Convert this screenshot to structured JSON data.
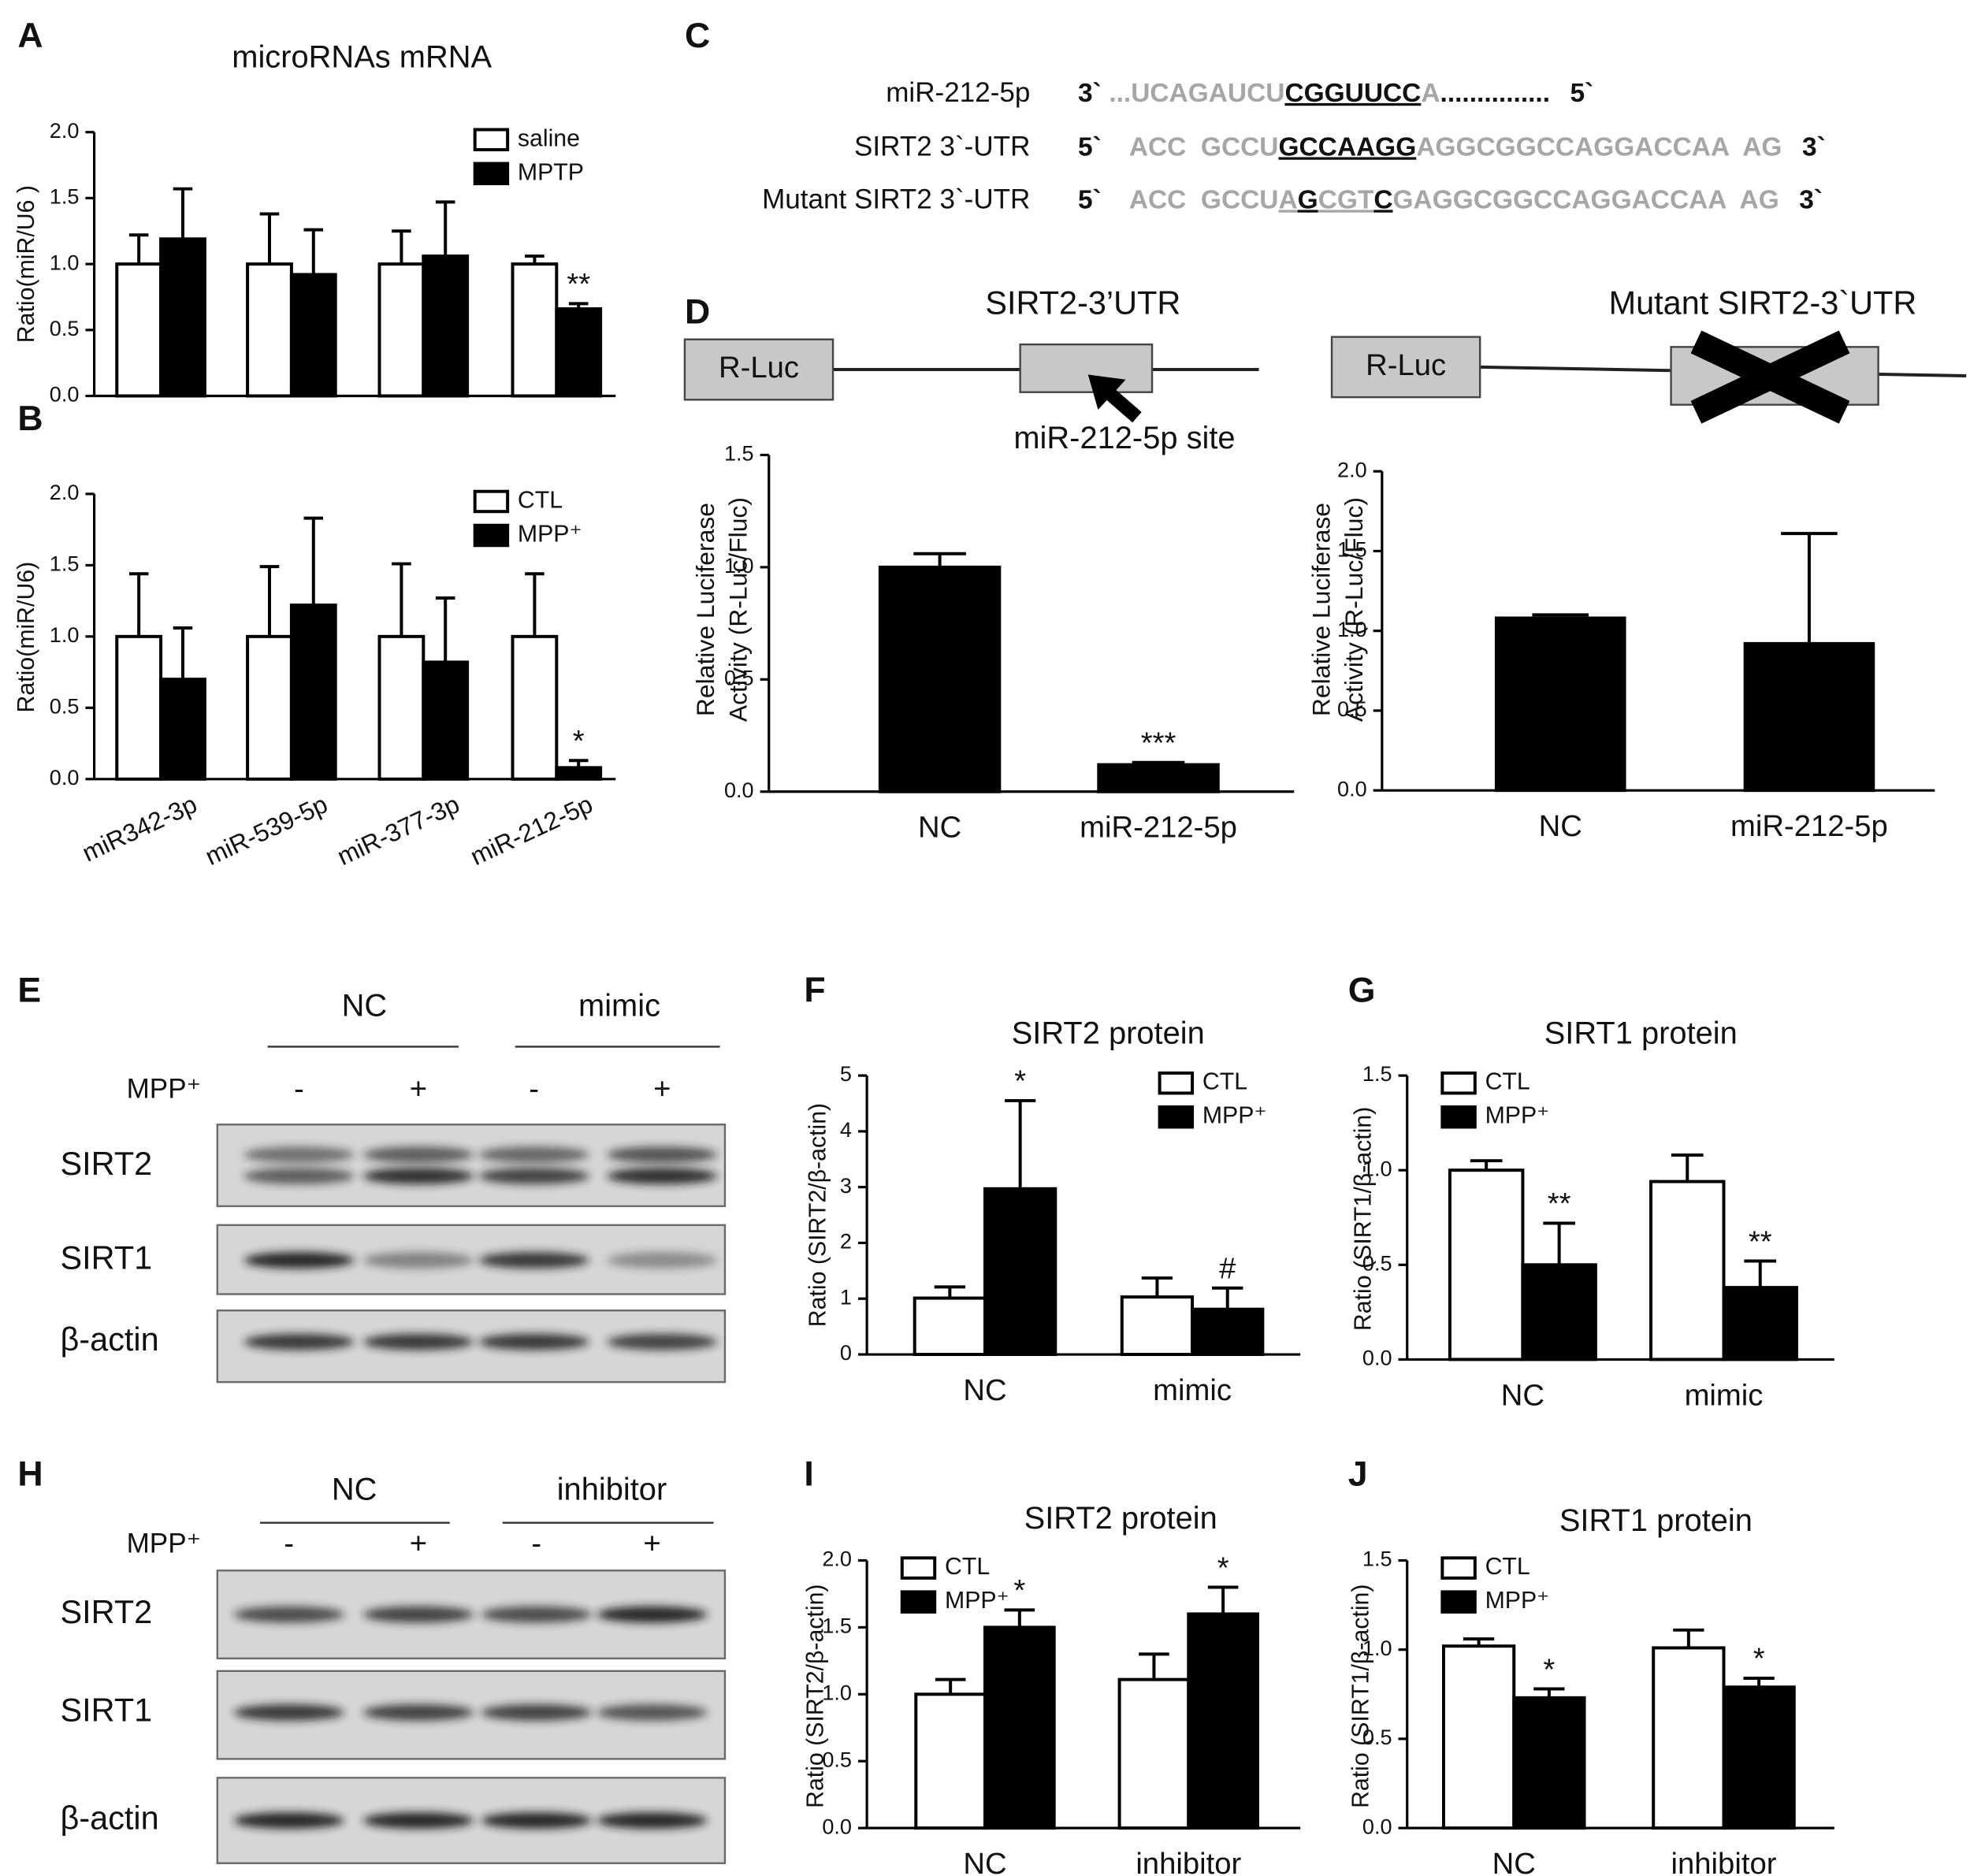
{
  "panel_labels": [
    "A",
    "B",
    "C",
    "D",
    "E",
    "F",
    "G",
    "H",
    "I",
    "J"
  ],
  "chart_data": [
    {
      "type": "bar",
      "title": "microRNAs mRNA",
      "y_label": "Ratio(miR/U6 )",
      "categories": [
        null,
        null,
        null,
        null
      ],
      "ylim": [
        0,
        2
      ],
      "yticks": [
        {
          "value": 0,
          "label": "0.0"
        },
        {
          "value": 0.5,
          "label": "0.5"
        },
        {
          "value": 1,
          "label": "1.0"
        },
        {
          "value": 1.5,
          "label": "1.5"
        },
        {
          "value": 2,
          "label": "2.0"
        }
      ],
      "legend": "upper right",
      "series": [
        {
          "name": "saline",
          "color": "#ffffff",
          "values": [
            1.0,
            1.0,
            1.0,
            1.0
          ],
          "errors": [
            0.22,
            0.38,
            0.25,
            0.06
          ]
        },
        {
          "name": "MPTP",
          "color": "#000000",
          "values": [
            1.19,
            0.92,
            1.06,
            0.66
          ],
          "errors": [
            0.38,
            0.34,
            0.41,
            0.04
          ],
          "significance": [
            null,
            null,
            null,
            "**"
          ]
        }
      ]
    },
    {
      "type": "bar",
      "y_label": "Ratio(miR/U6)",
      "categories": [
        "miR342-3p",
        "miR-539-5p",
        "miR-377-3p",
        "miR-212-5p"
      ],
      "ylim": [
        0,
        2
      ],
      "yticks": [
        {
          "value": 0,
          "label": "0.0"
        },
        {
          "value": 0.5,
          "label": "0.5"
        },
        {
          "value": 1,
          "label": "1.0"
        },
        {
          "value": 1.5,
          "label": "1.5"
        },
        {
          "value": 2,
          "label": "2.0"
        }
      ],
      "legend": "upper right",
      "series": [
        {
          "name": "CTL",
          "color": "#ffffff",
          "values": [
            1.0,
            1.0,
            1.0,
            1.0
          ],
          "errors": [
            0.44,
            0.49,
            0.51,
            0.44
          ]
        },
        {
          "name": "MPP⁺",
          "color": "#000000",
          "values": [
            0.7,
            1.22,
            0.82,
            0.08
          ],
          "errors": [
            0.36,
            0.61,
            0.45,
            0.05
          ],
          "significance": [
            null,
            null,
            null,
            "*"
          ]
        }
      ]
    },
    {
      "type": "bar",
      "y_label": [
        "Relative Luciferase",
        "Activity (R-Luc/Fluc)"
      ],
      "categories": [
        "NC",
        "miR-212-5p"
      ],
      "ylim": [
        0,
        1.5
      ],
      "yticks": [
        {
          "value": 0,
          "label": "0.0"
        },
        {
          "value": 0.5,
          "label": "0.5"
        },
        {
          "value": 1,
          "label": "1.0"
        },
        {
          "value": 1.5,
          "label": "1.5"
        }
      ],
      "color": "#000000",
      "values": [
        1.0,
        0.12
      ],
      "errors": [
        0.06,
        0.01
      ],
      "significance": [
        null,
        "***"
      ]
    },
    {
      "type": "bar",
      "y_label": [
        "Relative Luciferase",
        "Activity (R-Luc/Fluc)"
      ],
      "categories": [
        "NC",
        "miR-212-5p"
      ],
      "ylim": [
        0,
        2
      ],
      "yticks": [
        {
          "value": 0,
          "label": "0.0"
        },
        {
          "value": 0.5,
          "label": "0.5"
        },
        {
          "value": 1,
          "label": "1.0"
        },
        {
          "value": 1.5,
          "label": "1.5"
        },
        {
          "value": 2,
          "label": "2.0"
        }
      ],
      "color": "#000000",
      "values": [
        1.08,
        0.92
      ],
      "errors": [
        0.02,
        0.69
      ]
    },
    {
      "type": "bar",
      "title": "SIRT2  protein",
      "y_label": "Ratio (SIRT2/β-actin)",
      "categories": [
        "NC",
        "mimic"
      ],
      "ylim": [
        0,
        5
      ],
      "yticks": [
        0,
        1,
        2,
        3,
        4,
        5
      ],
      "legend": "upper right",
      "series": [
        {
          "name": "CTL",
          "color": "#ffffff",
          "values": [
            1.01,
            1.03
          ],
          "errors": [
            0.2,
            0.34
          ]
        },
        {
          "name": "MPP⁺",
          "color": "#000000",
          "values": [
            2.97,
            0.81
          ],
          "errors": [
            1.58,
            0.38
          ],
          "significance": [
            "*",
            "#"
          ]
        }
      ]
    },
    {
      "type": "bar",
      "title": "SIRT1 protein",
      "y_label": "Ratio (SIRT1/β-actin)",
      "categories": [
        "NC",
        "mimic"
      ],
      "ylim": [
        0,
        1.5
      ],
      "yticks": [
        {
          "value": 0,
          "label": "0.0"
        },
        {
          "value": 0.5,
          "label": "0.5"
        },
        {
          "value": 1,
          "label": "1.0"
        },
        {
          "value": 1.5,
          "label": "1.5"
        }
      ],
      "legend": "upper left",
      "series": [
        {
          "name": "CTL",
          "color": "#ffffff",
          "values": [
            1.0,
            0.94
          ],
          "errors": [
            0.05,
            0.14
          ]
        },
        {
          "name": "MPP⁺",
          "color": "#000000",
          "values": [
            0.5,
            0.38
          ],
          "errors": [
            0.22,
            0.14
          ],
          "significance": [
            "**",
            "**"
          ]
        }
      ]
    },
    {
      "type": "bar",
      "title": "SIRT2  protein",
      "y_label": "Ratio (SIRT2/β-actin)",
      "categories": [
        "NC",
        "inhibitor"
      ],
      "ylim": [
        0,
        2
      ],
      "yticks": [
        {
          "value": 0,
          "label": "0.0"
        },
        {
          "value": 0.5,
          "label": "0.5"
        },
        {
          "value": 1,
          "label": "1.0"
        },
        {
          "value": 1.5,
          "label": "1.5"
        },
        {
          "value": 2,
          "label": "2.0"
        }
      ],
      "legend": "upper left",
      "series": [
        {
          "name": "CTL",
          "color": "#ffffff",
          "values": [
            1.0,
            1.11
          ],
          "errors": [
            0.11,
            0.19
          ]
        },
        {
          "name": "MPP⁺",
          "color": "#000000",
          "values": [
            1.5,
            1.6
          ],
          "errors": [
            0.13,
            0.2
          ],
          "significance": [
            "*",
            "*"
          ]
        }
      ]
    },
    {
      "type": "bar",
      "title": "SIRT1 protein",
      "y_label": "Ratio (SIRT1/β-actin)",
      "categories": [
        "NC",
        "inhibitor"
      ],
      "ylim": [
        0,
        1.5
      ],
      "yticks": [
        {
          "value": 0,
          "label": "0.0"
        },
        {
          "value": 0.5,
          "label": "0.5"
        },
        {
          "value": 1,
          "label": "1.0"
        },
        {
          "value": 1.5,
          "label": "1.5"
        }
      ],
      "legend": "upper left",
      "series": [
        {
          "name": "CTL",
          "color": "#ffffff",
          "values": [
            1.02,
            1.01
          ],
          "errors": [
            0.04,
            0.1
          ]
        },
        {
          "name": "MPP⁺",
          "color": "#000000",
          "values": [
            0.73,
            0.79
          ],
          "errors": [
            0.05,
            0.05
          ],
          "significance": [
            "*",
            "*"
          ]
        }
      ]
    }
  ],
  "sequences": {
    "rows": [
      {
        "label": "miR-212-5p",
        "start": "3`",
        "end": "5`",
        "parts": [
          {
            "text": "...UCAGAUCU",
            "style": "gray"
          },
          {
            "text": "CGGUUCC",
            "style": "seed"
          },
          {
            "text": "A",
            "style": "gray"
          },
          {
            "text": "...............",
            "style": "plain"
          }
        ]
      },
      {
        "label": "SIRT2 3`-UTR",
        "start": "5`",
        "end": "3`",
        "parts": [
          {
            "text": "ACC  GCCU",
            "style": "gray"
          },
          {
            "text": "GCCAAGG",
            "style": "seed"
          },
          {
            "text": "AGGCGGCCAGGACCAA  AG",
            "style": "gray"
          }
        ]
      },
      {
        "label": "Mutant SIRT2 3`-UTR",
        "start": "5`",
        "end": "3`",
        "parts": [
          {
            "text": "ACC  GCCU",
            "style": "gray"
          },
          {
            "text": "A",
            "style": "gray-underline"
          },
          {
            "text": "G",
            "style": "seed"
          },
          {
            "text": "CGT",
            "style": "gray-underline"
          },
          {
            "text": "C",
            "style": "seed"
          },
          {
            "text": "GAGGCGGCCAGGACCAA  AG",
            "style": "gray"
          }
        ]
      }
    ]
  },
  "constructs": [
    {
      "title": "SIRT2-3’UTR",
      "box": "R-Luc",
      "site": "miR-212-5p site"
    },
    {
      "title": "Mutant SIRT2-3`UTR",
      "box": "R-Luc"
    }
  ],
  "blots": [
    {
      "groups": [
        "NC",
        "mimic"
      ],
      "treatment": "MPP⁺",
      "signs": [
        "-",
        "+",
        "-",
        "+"
      ],
      "rows": [
        "SIRT2",
        "SIRT1",
        "β-actin"
      ]
    },
    {
      "groups": [
        "NC",
        "inhibitor"
      ],
      "treatment": "MPP⁺",
      "signs": [
        "-",
        "+",
        "-",
        "+"
      ],
      "rows": [
        "SIRT2",
        "SIRT1",
        "β-actin"
      ]
    }
  ]
}
